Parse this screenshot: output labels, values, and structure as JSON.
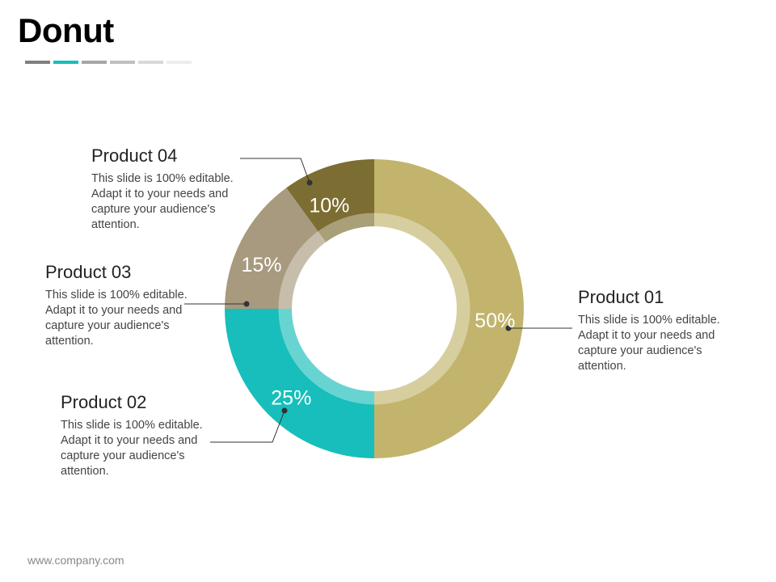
{
  "slide": {
    "title": "Donut",
    "footer": "www.company.com",
    "title_bar_colors": [
      "#7f7f7f",
      "#17bebb",
      "#a6a6a6",
      "#bfbfbf",
      "#d9d9d9",
      "#ededed"
    ]
  },
  "chart_data": {
    "type": "pie",
    "variant": "donut",
    "title": "Donut",
    "series": [
      {
        "name": "Product 01",
        "value": 50,
        "label": "50%",
        "color": "#c2b46c",
        "description": "This slide is 100% editable. Adapt it to your needs and capture your audience's attention."
      },
      {
        "name": "Product 02",
        "value": 25,
        "label": "25%",
        "color": "#17bebb",
        "description": "This slide is 100% editable. Adapt it to your needs and capture your audience's attention."
      },
      {
        "name": "Product 03",
        "value": 15,
        "label": "15%",
        "color": "#a89a7e",
        "description": "This slide is 100% editable. Adapt it to your needs and capture your audience's attention."
      },
      {
        "name": "Product 04",
        "value": 10,
        "label": "10%",
        "color": "#7c6d32",
        "description": "This slide is 100% editable. Adapt it to your needs and capture your audience's attention."
      }
    ]
  }
}
